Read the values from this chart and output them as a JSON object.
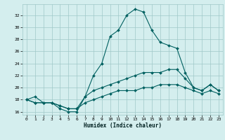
{
  "xlabel": "Humidex (Indice chaleur)",
  "x": [
    0,
    1,
    2,
    3,
    4,
    5,
    6,
    7,
    8,
    9,
    10,
    11,
    12,
    13,
    14,
    15,
    16,
    17,
    18,
    19,
    20,
    21,
    22,
    23
  ],
  "line1": [
    18.0,
    18.5,
    17.5,
    17.5,
    16.5,
    16.0,
    16.0,
    18.5,
    22.0,
    24.0,
    28.5,
    29.5,
    32.0,
    33.0,
    32.5,
    29.5,
    27.5,
    27.0,
    26.5,
    22.5,
    20.0,
    19.5,
    20.5,
    19.5
  ],
  "line2": [
    18.0,
    17.5,
    17.5,
    17.5,
    17.0,
    16.5,
    16.5,
    18.5,
    19.5,
    20.0,
    20.5,
    21.0,
    21.5,
    22.0,
    22.5,
    22.5,
    22.5,
    23.0,
    23.0,
    21.5,
    20.0,
    19.5,
    20.5,
    19.5
  ],
  "line3": [
    18.0,
    17.5,
    17.5,
    17.5,
    17.0,
    16.5,
    16.5,
    17.5,
    18.0,
    18.5,
    19.0,
    19.5,
    19.5,
    19.5,
    20.0,
    20.0,
    20.5,
    20.5,
    20.5,
    20.0,
    19.5,
    19.0,
    19.5,
    19.0
  ],
  "line_color": "#006060",
  "bg_color": "#d4eeee",
  "grid_color": "#a0c8c8",
  "ylim": [
    15.5,
    33.8
  ],
  "yticks": [
    16,
    18,
    20,
    22,
    24,
    26,
    28,
    30,
    32
  ],
  "xlim": [
    -0.5,
    23.5
  ],
  "xticks": [
    0,
    1,
    2,
    3,
    4,
    5,
    6,
    7,
    8,
    9,
    10,
    11,
    12,
    13,
    14,
    15,
    16,
    17,
    18,
    19,
    20,
    21,
    22,
    23
  ]
}
